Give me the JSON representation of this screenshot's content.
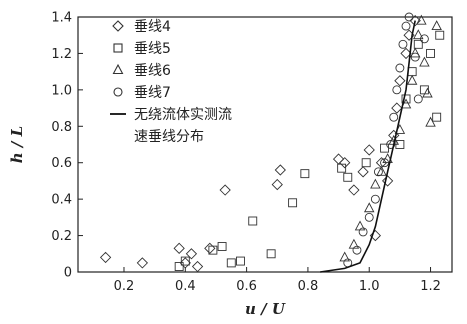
{
  "chart_data": {
    "type": "scatter",
    "title": "",
    "xlabel": "u / U",
    "ylabel": "h / L",
    "xlim": [
      0.05,
      1.27
    ],
    "ylim": [
      0,
      1.4
    ],
    "xticks": [
      0.2,
      0.4,
      0.6,
      0.8,
      1.0,
      1.2
    ],
    "xtick_labels": [
      "0.2",
      "0.4",
      "0.6",
      "0.8",
      "1.0",
      "1.2"
    ],
    "yticks": [
      0,
      0.2,
      0.4,
      0.6,
      0.8,
      1.0,
      1.2,
      1.4
    ],
    "ytick_labels": [
      "0",
      "0.2",
      "0.4",
      "0.6",
      "0.8",
      "1.0",
      "1.2",
      "1.4"
    ],
    "grid": false,
    "legend_position": "top-left",
    "series": [
      {
        "name": "垂线4",
        "marker": "diamond",
        "points": [
          [
            0.14,
            0.08
          ],
          [
            0.26,
            0.05
          ],
          [
            0.38,
            0.13
          ],
          [
            0.4,
            0.05
          ],
          [
            0.42,
            0.1
          ],
          [
            0.44,
            0.03
          ],
          [
            0.48,
            0.13
          ],
          [
            0.53,
            0.45
          ],
          [
            0.7,
            0.48
          ],
          [
            0.71,
            0.56
          ],
          [
            0.9,
            0.62
          ],
          [
            0.92,
            0.6
          ],
          [
            0.95,
            0.45
          ],
          [
            0.98,
            0.55
          ],
          [
            1.0,
            0.67
          ],
          [
            1.02,
            0.2
          ],
          [
            1.04,
            0.6
          ],
          [
            1.06,
            0.5
          ],
          [
            1.08,
            0.75
          ],
          [
            1.09,
            0.9
          ],
          [
            1.1,
            1.05
          ],
          [
            1.12,
            1.2
          ],
          [
            1.13,
            1.3
          ],
          [
            1.15,
            1.38
          ]
        ]
      },
      {
        "name": "垂线5",
        "marker": "square",
        "points": [
          [
            0.38,
            0.03
          ],
          [
            0.4,
            0.06
          ],
          [
            0.49,
            0.12
          ],
          [
            0.52,
            0.14
          ],
          [
            0.55,
            0.05
          ],
          [
            0.58,
            0.06
          ],
          [
            0.62,
            0.28
          ],
          [
            0.68,
            0.1
          ],
          [
            0.75,
            0.38
          ],
          [
            0.79,
            0.54
          ],
          [
            0.91,
            0.57
          ],
          [
            0.93,
            0.52
          ],
          [
            0.99,
            0.6
          ],
          [
            1.05,
            0.68
          ],
          [
            1.1,
            0.7
          ],
          [
            1.12,
            0.95
          ],
          [
            1.14,
            1.1
          ],
          [
            1.16,
            1.25
          ],
          [
            1.18,
            1.0
          ],
          [
            1.2,
            1.2
          ],
          [
            1.22,
            0.85
          ],
          [
            1.23,
            1.3
          ]
        ]
      },
      {
        "name": "垂线6",
        "marker": "triangle",
        "points": [
          [
            0.92,
            0.08
          ],
          [
            0.95,
            0.15
          ],
          [
            0.97,
            0.25
          ],
          [
            1.0,
            0.35
          ],
          [
            1.02,
            0.48
          ],
          [
            1.04,
            0.55
          ],
          [
            1.06,
            0.62
          ],
          [
            1.08,
            0.72
          ],
          [
            1.1,
            0.78
          ],
          [
            1.12,
            0.92
          ],
          [
            1.14,
            1.05
          ],
          [
            1.15,
            1.2
          ],
          [
            1.16,
            1.3
          ],
          [
            1.17,
            1.38
          ],
          [
            1.18,
            1.15
          ],
          [
            1.19,
            0.98
          ],
          [
            1.2,
            0.82
          ],
          [
            1.22,
            1.35
          ]
        ]
      },
      {
        "name": "垂线7",
        "marker": "circle",
        "points": [
          [
            0.93,
            0.05
          ],
          [
            0.96,
            0.12
          ],
          [
            0.98,
            0.22
          ],
          [
            1.0,
            0.3
          ],
          [
            1.02,
            0.4
          ],
          [
            1.03,
            0.55
          ],
          [
            1.05,
            0.6
          ],
          [
            1.07,
            0.7
          ],
          [
            1.08,
            0.85
          ],
          [
            1.09,
            1.0
          ],
          [
            1.1,
            1.12
          ],
          [
            1.11,
            1.25
          ],
          [
            1.12,
            1.35
          ],
          [
            1.13,
            1.4
          ],
          [
            1.15,
            1.18
          ],
          [
            1.16,
            0.95
          ],
          [
            1.18,
            1.28
          ]
        ]
      },
      {
        "name": "无绕流体实测流速垂线分布",
        "marker": "line",
        "points": [
          [
            0.84,
            0.0
          ],
          [
            0.92,
            0.02
          ],
          [
            0.97,
            0.05
          ],
          [
            1.0,
            0.15
          ],
          [
            1.02,
            0.25
          ],
          [
            1.04,
            0.4
          ],
          [
            1.06,
            0.55
          ],
          [
            1.08,
            0.7
          ],
          [
            1.1,
            0.85
          ],
          [
            1.12,
            1.0
          ],
          [
            1.13,
            1.15
          ],
          [
            1.14,
            1.3
          ],
          [
            1.15,
            1.38
          ]
        ]
      }
    ]
  }
}
